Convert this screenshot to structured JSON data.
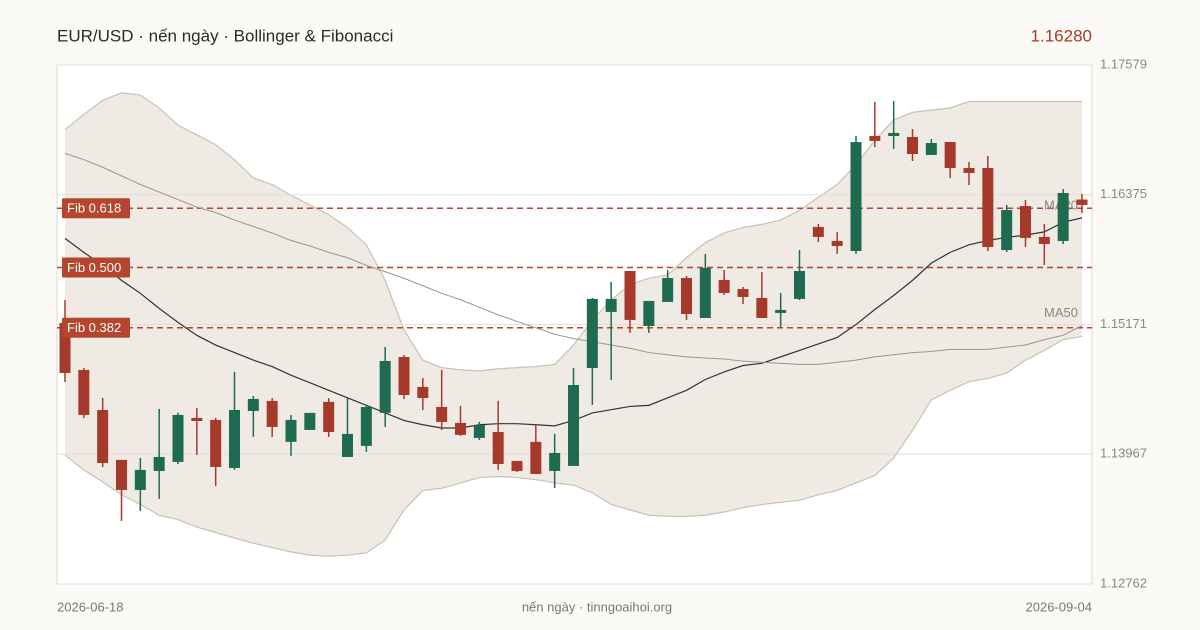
{
  "chart_data": {
    "type": "candlestick",
    "title": "EUR/USD · nến ngày · Bollinger & Fibonacci",
    "last_price": "1.16280",
    "source": "nến ngày · tinngoaihoi.org",
    "categories": [
      "2026-06-18",
      null,
      null,
      null,
      null,
      null,
      null,
      null,
      null,
      null,
      null,
      null,
      null,
      null,
      null,
      null,
      null,
      null,
      null,
      null,
      null,
      null,
      null,
      null,
      null,
      null,
      null,
      null,
      null,
      null,
      null,
      null,
      null,
      null,
      null,
      null,
      null,
      null,
      null,
      null,
      null,
      null,
      null,
      null,
      null,
      null,
      null,
      null,
      null,
      null,
      null,
      null,
      null,
      null,
      "2026-09-04"
    ],
    "open": [
      1.15185,
      1.14749,
      1.14377,
      1.13914,
      1.13635,
      1.13811,
      1.13895,
      1.14303,
      1.14285,
      1.13839,
      1.14368,
      1.14461,
      1.14081,
      1.14192,
      1.14452,
      1.13941,
      1.14044,
      1.1435,
      1.14869,
      1.14591,
      1.14405,
      1.14257,
      1.14118,
      1.14173,
      1.13904,
      1.14081,
      1.13811,
      1.13858,
      1.14767,
      1.15287,
      1.15667,
      1.15157,
      1.1538,
      1.15602,
      1.15231,
      1.15584,
      1.155,
      1.15417,
      1.15278,
      1.15408,
      1.16076,
      1.15946,
      1.15853,
      1.1692,
      1.1692,
      1.16911,
      1.16744,
      1.16864,
      1.16623,
      1.16623,
      1.15862,
      1.1627,
      1.15983,
      1.15946,
      1.1633
    ],
    "high": [
      1.15398,
      1.14767,
      1.14488,
      1.13914,
      1.13932,
      1.14387,
      1.1435,
      1.14396,
      1.14303,
      1.1473,
      1.14507,
      1.14488,
      1.14331,
      1.1435,
      1.14488,
      1.14488,
      1.14414,
      1.14962,
      1.14888,
      1.14674,
      1.14749,
      1.14414,
      1.14266,
      1.14461,
      1.13904,
      1.14238,
      1.14155,
      1.14767,
      1.15417,
      1.15565,
      1.15667,
      1.15389,
      1.15676,
      1.15621,
      1.15825,
      1.15676,
      1.15519,
      1.15658,
      1.15463,
      1.15862,
      1.16104,
      1.1603,
      1.1692,
      1.17236,
      1.17245,
      1.16985,
      1.16892,
      1.16864,
      1.16679,
      1.16735,
      1.1628,
      1.16326,
      1.16104,
      1.16428,
      1.16382
    ],
    "low": [
      1.14637,
      1.14303,
      1.13848,
      1.13348,
      1.1344,
      1.13552,
      1.13876,
      1.1396,
      1.13672,
      1.13821,
      1.14127,
      1.14127,
      1.13951,
      1.14192,
      1.14127,
      1.13941,
      1.13988,
      1.1422,
      1.14479,
      1.14377,
      1.14192,
      1.14136,
      1.14099,
      1.13821,
      1.13802,
      1.13783,
      1.13653,
      1.13858,
      1.14424,
      1.14656,
      1.15092,
      1.15092,
      1.1538,
      1.15213,
      1.15231,
      1.15445,
      1.15361,
      1.15231,
      1.15148,
      1.15398,
      1.15936,
      1.15825,
      1.15825,
      1.16818,
      1.168,
      1.16688,
      1.16744,
      1.1653,
      1.16465,
      1.15853,
      1.15843,
      1.1589,
      1.15723,
      1.15918,
      1.16206
    ],
    "close": [
      1.14721,
      1.14331,
      1.13885,
      1.13635,
      1.13821,
      1.13941,
      1.14331,
      1.14275,
      1.13848,
      1.14377,
      1.14479,
      1.1422,
      1.14285,
      1.1435,
      1.14173,
      1.14155,
      1.14405,
      1.14832,
      1.14516,
      1.14488,
      1.14266,
      1.14146,
      1.14238,
      1.13876,
      1.13811,
      1.13783,
      1.13978,
      1.14609,
      1.15408,
      1.15408,
      1.15213,
      1.15389,
      1.15602,
      1.15268,
      1.15695,
      1.15463,
      1.15426,
      1.15231,
      1.15306,
      1.15667,
      1.15983,
      1.15899,
      1.16864,
      1.16874,
      1.16948,
      1.16753,
      1.16855,
      1.16623,
      1.16577,
      1.1589,
      1.16233,
      1.15974,
      1.15918,
      1.16391,
      1.1628
    ],
    "up_color": "#1e6b52",
    "down_color": "#a63a2a",
    "bollinger": {
      "fill": "#efebe4",
      "stroke": "#c9c0b4",
      "upper": [
        1.1698,
        1.1712,
        1.1725,
        1.1732,
        1.173,
        1.1718,
        1.1702,
        1.1693,
        1.1684,
        1.167,
        1.1653,
        1.1647,
        1.1637,
        1.1628,
        1.1619,
        1.1607,
        1.1591,
        1.1558,
        1.1512,
        1.1484,
        1.1477,
        1.1475,
        1.1474,
        1.1476,
        1.1477,
        1.1478,
        1.148,
        1.1498,
        1.1521,
        1.154,
        1.1554,
        1.156,
        1.1563,
        1.1579,
        1.1593,
        1.1602,
        1.1607,
        1.161,
        1.1614,
        1.1623,
        1.1635,
        1.1647,
        1.1665,
        1.1688,
        1.1707,
        1.1714,
        1.1716,
        1.1718,
        1.1724,
        1.1724,
        1.1724,
        1.1724,
        1.1724,
        1.1724,
        1.1724
      ],
      "lower": [
        1.1396,
        1.1382,
        1.1371,
        1.1359,
        1.135,
        1.134,
        1.1336,
        1.1329,
        1.1324,
        1.1319,
        1.1314,
        1.131,
        1.1306,
        1.1303,
        1.1302,
        1.1303,
        1.1305,
        1.1317,
        1.1345,
        1.1363,
        1.1365,
        1.137,
        1.1375,
        1.1376,
        1.1375,
        1.1373,
        1.137,
        1.1368,
        1.1361,
        1.135,
        1.1345,
        1.134,
        1.1339,
        1.1339,
        1.134,
        1.1343,
        1.1347,
        1.135,
        1.1352,
        1.1354,
        1.1359,
        1.1363,
        1.137,
        1.1377,
        1.1393,
        1.1419,
        1.1447,
        1.1456,
        1.1464,
        1.1467,
        1.1472,
        1.1484,
        1.1493,
        1.1503,
        1.1506
      ]
    },
    "series": [
      {
        "name": "MA20",
        "color": "#333333",
        "width": 1.2,
        "values": [
          1.1597,
          1.1584,
          1.1572,
          1.1558,
          1.1546,
          1.1532,
          1.1519,
          1.1507,
          1.1498,
          1.1491,
          1.1484,
          1.1478,
          1.147,
          1.1463,
          1.1456,
          1.1449,
          1.1442,
          1.1435,
          1.1428,
          1.1424,
          1.1421,
          1.1421,
          1.1424,
          1.1425,
          1.1425,
          1.1424,
          1.1423,
          1.1428,
          1.1435,
          1.1438,
          1.1441,
          1.1442,
          1.1449,
          1.1456,
          1.1466,
          1.1473,
          1.1479,
          1.1481,
          1.1487,
          1.1493,
          1.1499,
          1.1505,
          1.1517,
          1.1531,
          1.1544,
          1.1558,
          1.1574,
          1.1584,
          1.1591,
          1.1595,
          1.1598,
          1.16,
          1.1603,
          1.1612,
          1.1616
        ]
      },
      {
        "name": "MA50",
        "color": "#9a948c",
        "width": 1,
        "values": [
          1.1676,
          1.167,
          1.1663,
          1.1655,
          1.1647,
          1.164,
          1.1633,
          1.1626,
          1.1621,
          1.1614,
          1.1608,
          1.1602,
          1.1595,
          1.159,
          1.1584,
          1.1579,
          1.1572,
          1.1566,
          1.156,
          1.1553,
          1.1546,
          1.154,
          1.1533,
          1.1526,
          1.152,
          1.1514,
          1.1508,
          1.1504,
          1.1501,
          1.1498,
          1.1495,
          1.1491,
          1.1489,
          1.1487,
          1.1486,
          1.1485,
          1.1483,
          1.1482,
          1.1481,
          1.148,
          1.148,
          1.1482,
          1.1484,
          1.1487,
          1.1489,
          1.1491,
          1.1492,
          1.1494,
          1.1494,
          1.1494,
          1.1496,
          1.1498,
          1.1503,
          1.1507,
          1.1516
        ]
      }
    ],
    "fib_levels": [
      {
        "label": "Fib 0.618",
        "value": 1.1625
      },
      {
        "label": "Fib 0.500",
        "value": 1.157
      },
      {
        "label": "Fib 0.382",
        "value": 1.1514
      }
    ],
    "fib_color": "#b5452f",
    "ylim": [
      1.12762,
      1.17579
    ],
    "yticks": [
      1.17579,
      1.16375,
      1.15171,
      1.13967,
      1.12762
    ],
    "grid": true
  }
}
